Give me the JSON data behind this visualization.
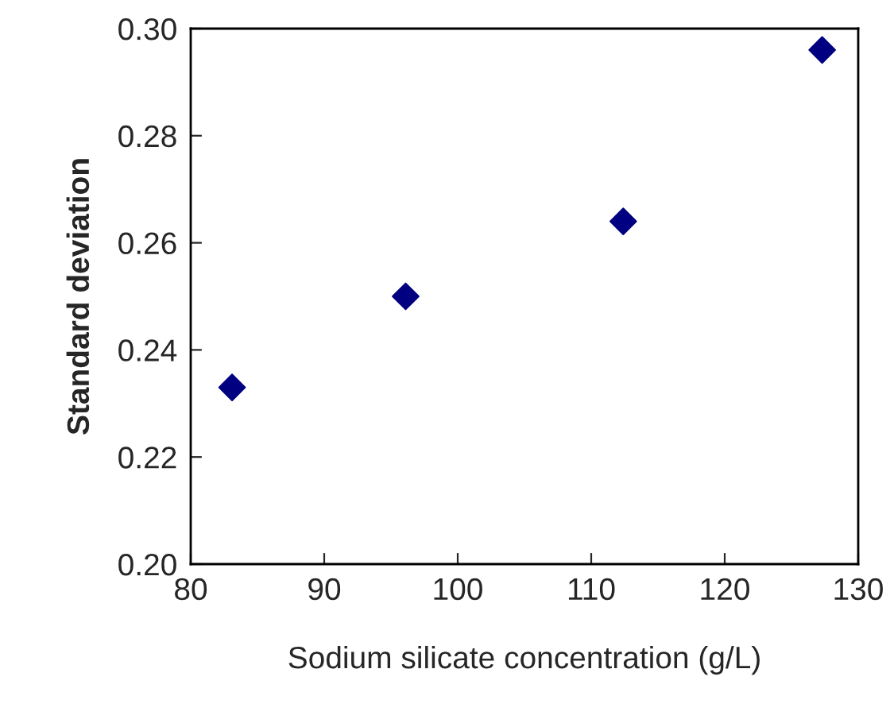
{
  "chart_data": {
    "type": "scatter",
    "xlabel": "Sodium silicate concentration (g/L)",
    "ylabel": "Standard deviation",
    "series": [
      {
        "color": "#000080",
        "x": [
          83.1,
          96.1,
          112.4,
          127.3
        ],
        "values": [
          0.233,
          0.25,
          0.264,
          0.296
        ]
      }
    ],
    "marker": "diamond",
    "grid": false,
    "xlim": [
      80,
      130
    ],
    "xticks": [
      80,
      90,
      100,
      110,
      120,
      130
    ],
    "ylim": [
      0.2,
      0.3
    ],
    "yticks": [
      {
        "value": 0.2,
        "label": "0.20"
      },
      {
        "value": 0.22,
        "label": "0.22"
      },
      {
        "value": 0.24,
        "label": "0.24"
      },
      {
        "value": 0.26,
        "label": "0.26"
      },
      {
        "value": 0.28,
        "label": "0.28"
      },
      {
        "value": 0.3,
        "label": "0.30"
      }
    ]
  }
}
